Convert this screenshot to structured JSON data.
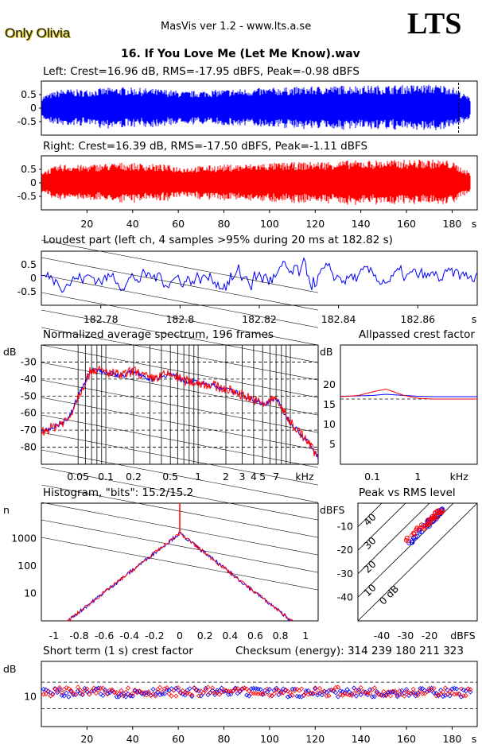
{
  "app": {
    "artist": "Only Olivia",
    "title": "MasVis ver 1.2 - www.lts.a.se",
    "logo": "LTS",
    "track": "16. If You Love Me (Let Me Know).wav"
  },
  "colors": {
    "left": "#0000ff",
    "right": "#ff0000",
    "bg": "#ffffff"
  },
  "chart_data": [
    {
      "type": "line",
      "title": "Left: Crest=16.96 dB, RMS=-17.95 dBFS, Peak=-0.98 dBFS",
      "yticks": [
        "0.5",
        "0",
        "-0.5"
      ],
      "ylim": [
        -1,
        1
      ],
      "xlim": [
        0,
        191
      ],
      "marker_x": 182.82,
      "series": [
        {
          "values": [
            0.45,
            0.72,
            0.68,
            0.75,
            0.78,
            0.74,
            0.7,
            0.62,
            0.66,
            0.7,
            0.72,
            0.75,
            0.78,
            0.8,
            0.82,
            0.85,
            0.84,
            0.85,
            0.86,
            0.88,
            0.85,
            0.4
          ]
        }
      ]
    },
    {
      "type": "line",
      "title": "Right: Crest=16.39 dB, RMS=-17.50 dBFS, Peak=-1.11 dBFS",
      "yticks": [
        "0.5",
        "0",
        "-0.5"
      ],
      "ylim": [
        -1,
        1
      ],
      "xlim": [
        0,
        191
      ],
      "xticks": [
        "20",
        "40",
        "60",
        "80",
        "100",
        "120",
        "140",
        "160",
        "180"
      ],
      "xunit": "s",
      "series": [
        {
          "values": [
            0.45,
            0.7,
            0.66,
            0.72,
            0.76,
            0.72,
            0.68,
            0.6,
            0.64,
            0.68,
            0.7,
            0.74,
            0.76,
            0.78,
            0.8,
            0.84,
            0.84,
            0.85,
            0.86,
            0.87,
            0.84,
            0.4
          ]
        }
      ]
    },
    {
      "type": "line",
      "title": "Loudest part (left  ch, 4 samples >95% during 20 ms at 182.82 s)",
      "yticks": [
        "0.5",
        "0",
        "-0.5"
      ],
      "ylim": [
        -1,
        1
      ],
      "xlim": [
        182.765,
        182.875
      ],
      "xticks": [
        "182.78",
        "182.8",
        "182.82",
        "182.84",
        "182.86"
      ],
      "xunit": "s"
    },
    {
      "type": "line",
      "title": "Normalized average spectrum, 196 frames",
      "ylabel": "dB",
      "yticks": [
        "-30",
        "-40",
        "-50",
        "-60",
        "-70",
        "-80"
      ],
      "ylim": [
        -90,
        -20
      ],
      "xticks": [
        "0.05",
        "0.1",
        "0.2",
        "0.5",
        "1",
        "2",
        "3",
        "4",
        "5",
        "7"
      ],
      "xunit": "kHz",
      "series": [
        {
          "x": [
            0.02,
            0.03,
            0.04,
            0.05,
            0.07,
            0.1,
            0.15,
            0.2,
            0.3,
            0.5,
            0.7,
            1,
            1.5,
            2,
            3,
            4,
            5,
            6,
            7,
            9,
            12,
            16,
            20
          ],
          "values": [
            -71,
            -67,
            -63,
            -50,
            -34,
            -36,
            -38,
            -35,
            -40,
            -37,
            -41,
            -42,
            -44,
            -46,
            -49,
            -52,
            -55,
            -53,
            -51,
            -62,
            -70,
            -78,
            -86
          ]
        }
      ]
    },
    {
      "type": "line",
      "title": "Allpassed crest factor",
      "ylabel": "dB",
      "yticks": [
        "20",
        "15",
        "10",
        "5"
      ],
      "ylim": [
        0,
        25
      ],
      "xticks": [
        "0.1",
        "1",
        "kHz"
      ],
      "series": [
        {
          "name": "left",
          "x": [
            0.02,
            0.05,
            0.1,
            0.2,
            0.5,
            1,
            2,
            5,
            10,
            20
          ],
          "values": [
            17.1,
            17.2,
            17.3,
            17.6,
            17.3,
            17.1,
            17.0,
            17.0,
            17.0,
            17.0
          ]
        },
        {
          "name": "right",
          "x": [
            0.02,
            0.05,
            0.1,
            0.2,
            0.5,
            1,
            2,
            5,
            10,
            20
          ],
          "values": [
            17.0,
            17.3,
            18.2,
            18.9,
            17.3,
            16.6,
            16.4,
            16.4,
            16.4,
            16.4
          ]
        }
      ]
    },
    {
      "type": "line",
      "title": "Histogram, \"bits\": 15.2/15.2",
      "ylabel": "n",
      "yticks": [
        "1000",
        "100",
        "10"
      ],
      "xticks": [
        "-1",
        "-0.8",
        "-0.6",
        "-0.4",
        "-0.2",
        "0",
        "0.2",
        "0.4",
        "0.6",
        "0.8",
        "1"
      ],
      "series": [
        {
          "x": [
            -0.9,
            -0.8,
            -0.6,
            -0.4,
            -0.2,
            0,
            0.2,
            0.4,
            0.6,
            0.8,
            0.9
          ],
          "values": [
            5,
            14,
            40,
            140,
            500,
            1600,
            500,
            140,
            40,
            14,
            5
          ]
        }
      ]
    },
    {
      "type": "scatter",
      "title": "Peak vs RMS level",
      "ylabel": "dBFS",
      "yticks": [
        "-10",
        "-20",
        "-30",
        "-40"
      ],
      "xticks": [
        "-40",
        "-30",
        "-20",
        "dBFS"
      ],
      "diagonal_labels": [
        "40",
        "30",
        "20",
        "10",
        "0 dB"
      ],
      "series": [
        {
          "name": "left",
          "x": [
            -28,
            -26,
            -24,
            -22,
            -21,
            -20,
            -19,
            -18,
            -17,
            -16,
            -15
          ],
          "values": [
            -16,
            -14,
            -12,
            -10,
            -9,
            -8,
            -7,
            -6,
            -5,
            -4,
            -3
          ]
        },
        {
          "name": "right",
          "x": [
            -29,
            -27,
            -25,
            -23,
            -21,
            -20,
            -19,
            -18,
            -17,
            -16,
            -15
          ],
          "values": [
            -15,
            -13,
            -11,
            -10,
            -9,
            -8,
            -7,
            -6,
            -5,
            -4,
            -3
          ]
        }
      ]
    },
    {
      "type": "scatter",
      "title": "Short term (1 s) crest factor",
      "ylabel": "dB",
      "checksum": "Checksum (energy):   314 239 180 211 323",
      "yticks": [
        "10"
      ],
      "xticks": [
        "20",
        "40",
        "60",
        "80",
        "100",
        "120",
        "140",
        "160",
        "180"
      ],
      "xunit": "s"
    }
  ]
}
